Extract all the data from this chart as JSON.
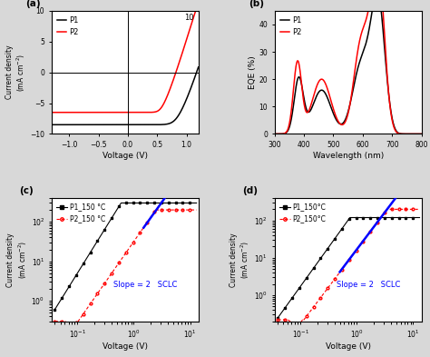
{
  "panel_a": {
    "label": "(a)",
    "xlabel": "Voltage (V)",
    "ylabel": "Current density\n(mA cm⁻²)",
    "xlim": [
      -1.3,
      1.2
    ],
    "ylim": [
      -10,
      10
    ],
    "xticks": [
      -1.0,
      -0.5,
      0.0,
      0.5,
      1.0
    ],
    "yticks": [
      -10,
      -5,
      0,
      5,
      10
    ],
    "legend_p1": "P1",
    "legend_p2": "P2",
    "color_p1": "black",
    "color_p2": "red"
  },
  "panel_b": {
    "label": "(b)",
    "xlabel": "Wavelength (nm)",
    "ylabel": "EQE (%)",
    "xlim": [
      300,
      800
    ],
    "ylim": [
      0,
      45
    ],
    "xticks": [
      300,
      400,
      500,
      600,
      700,
      800
    ],
    "yticks": [
      0,
      10,
      20,
      30,
      40
    ],
    "legend_p1": "P1",
    "legend_p2": "P2",
    "color_p1": "black",
    "color_p2": "red"
  },
  "panel_c": {
    "label": "(c)",
    "xlabel": "Voltage (V)",
    "ylabel": "Current density\n(mA cm⁻²)",
    "xlim": [
      0.03,
      15
    ],
    "ylim": [
      0.3,
      400
    ],
    "legend_p1": "P1_150 °C",
    "legend_p2": "P2_150 °C",
    "color_p1": "black",
    "color_p2": "red",
    "slope_text": "Slope = 2   SCLC",
    "slope_color": "blue"
  },
  "panel_d": {
    "label": "(d)",
    "xlabel": "Voltage (V)",
    "ylabel": "Current density\n(mA cm⁻²)",
    "xlim": [
      0.03,
      15
    ],
    "ylim": [
      0.2,
      400
    ],
    "legend_p1": "P1_150°C",
    "legend_p2": "P2_150°C",
    "color_p1": "black",
    "color_p2": "red",
    "slope_text": "Slope = 2   SCLC",
    "slope_color": "blue"
  },
  "fig_facecolor": "#d8d8d8"
}
